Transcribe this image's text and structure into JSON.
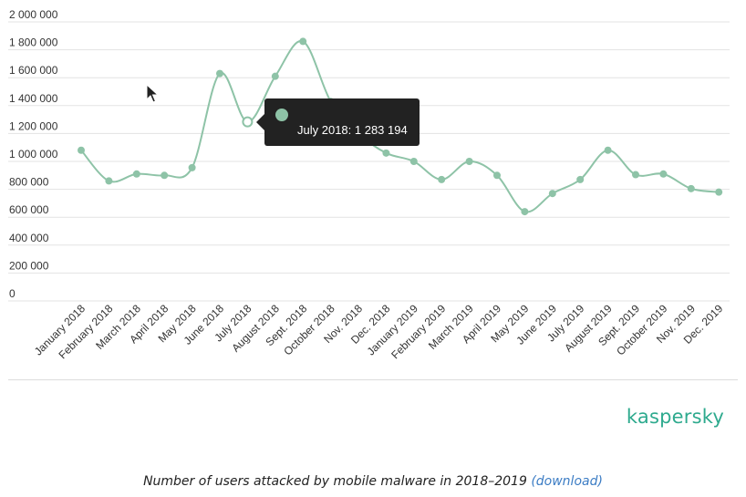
{
  "chart_data": {
    "type": "line",
    "title": "",
    "xlabel": "",
    "ylabel": "",
    "ylim": [
      0,
      2000000
    ],
    "yticks": [
      "2 000 000",
      "1 800 000",
      "1 600 000",
      "1 400 000",
      "1 200 000",
      "1 000 000",
      "800 000",
      "600 000",
      "400 000",
      "200 000",
      "0"
    ],
    "grid": true,
    "categories": [
      "January 2018",
      "February 2018",
      "March 2018",
      "April 2018",
      "May 2018",
      "June 2018",
      "July 2018",
      "August 2018",
      "Sept. 2018",
      "October 2018",
      "Nov. 2018",
      "Dec. 2018",
      "January 2019",
      "February 2019",
      "March 2019",
      "April 2019",
      "May 2019",
      "June 2019",
      "July 2019",
      "August 2019",
      "Sept. 2019",
      "October 2019",
      "Nov. 2019",
      "Dec. 2019"
    ],
    "series": [
      {
        "color": "#8ec3a7",
        "values": [
          1080000,
          860000,
          910000,
          900000,
          955000,
          1630000,
          1283194,
          1610000,
          1860000,
          1430000,
          1200000,
          1060000,
          1000000,
          870000,
          1000000,
          900000,
          640000,
          770000,
          870000,
          1080000,
          905000,
          910000,
          805000,
          780000
        ]
      }
    ],
    "highlight_index": 6
  },
  "tooltip": {
    "text": "July 2018: 1 283 194"
  },
  "footer": {
    "logo": "kaspersky",
    "caption": "Number of users attacked by mobile malware in 2018–2019",
    "download_label": "(download)"
  }
}
